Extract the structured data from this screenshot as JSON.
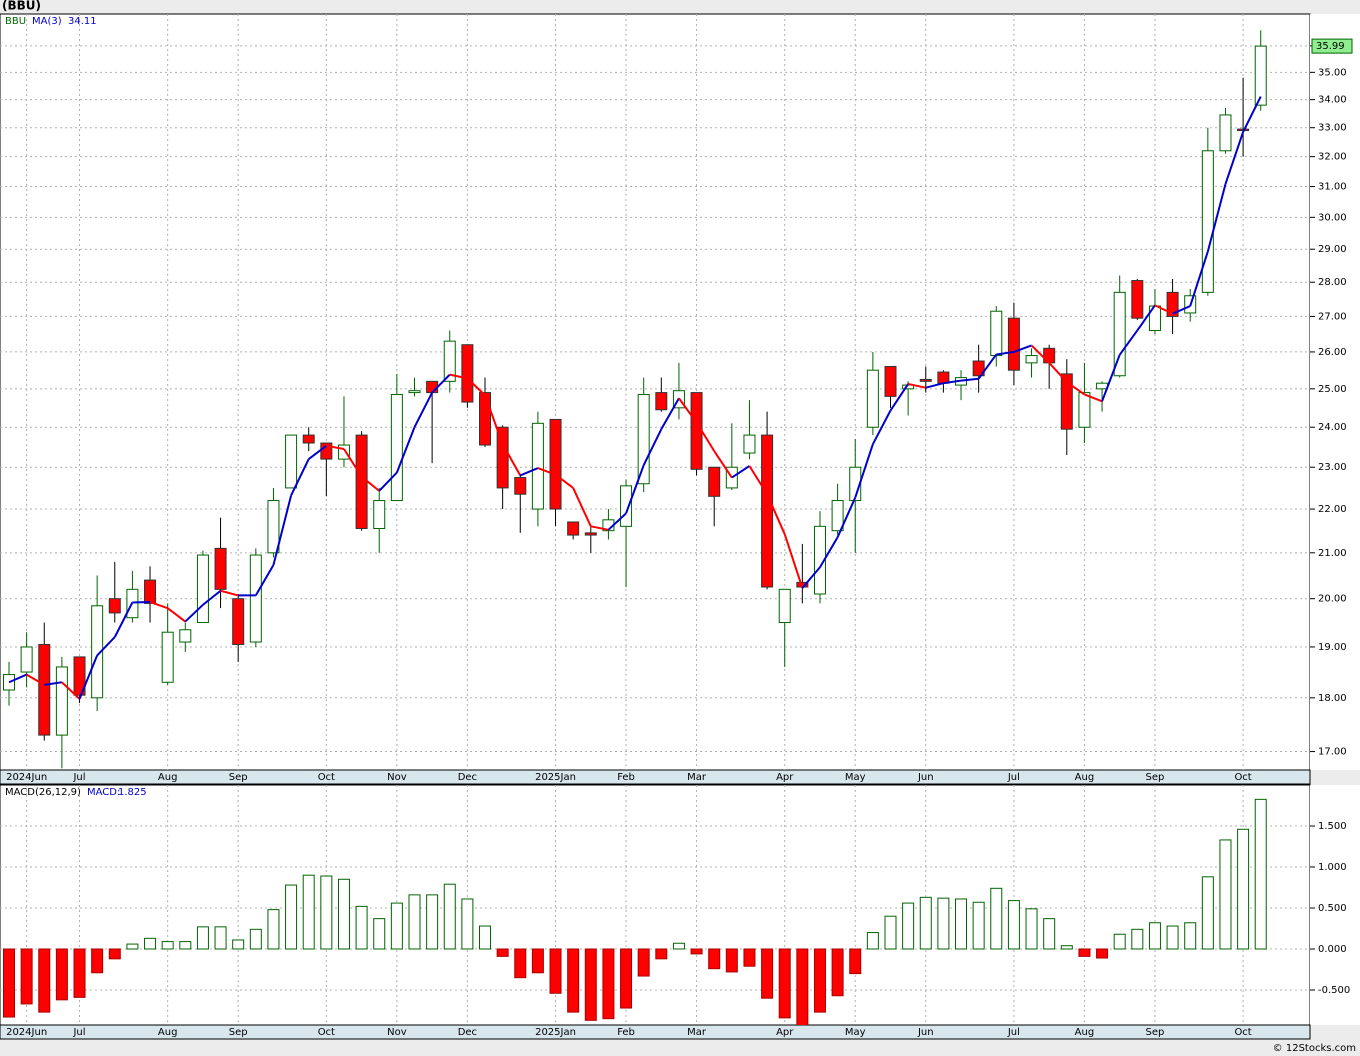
{
  "chart_data": [
    {
      "type": "candlestick",
      "title": "(BBU)",
      "symbol": "BBU",
      "categories": [
        null,
        "2024Jun",
        null,
        null,
        "Jul",
        null,
        null,
        null,
        null,
        "Aug",
        null,
        null,
        null,
        "Sep",
        null,
        null,
        null,
        null,
        "Oct",
        null,
        null,
        null,
        "Nov",
        null,
        null,
        null,
        "Dec",
        null,
        null,
        null,
        null,
        "2025Jan",
        null,
        null,
        null,
        "Feb",
        null,
        null,
        null,
        "Mar",
        null,
        null,
        null,
        null,
        "Apr",
        null,
        null,
        null,
        "May",
        null,
        null,
        null,
        "Jun",
        null,
        null,
        null,
        null,
        "Jul",
        null,
        null,
        null,
        "Aug",
        null,
        null,
        null,
        "Sep",
        null,
        null,
        null,
        null,
        "Oct",
        null
      ],
      "open": [
        18.15,
        18.5,
        19.05,
        17.3,
        18.8,
        18.0,
        20.0,
        19.6,
        20.4,
        18.3,
        19.1,
        19.5,
        21.1,
        20.0,
        19.1,
        21.0,
        22.5,
        23.8,
        23.6,
        23.2,
        23.8,
        21.55,
        22.2,
        24.9,
        25.2,
        25.2,
        26.2,
        24.9,
        24.0,
        22.75,
        22.0,
        24.2,
        21.7,
        21.45,
        21.5,
        21.6,
        22.6,
        24.9,
        24.5,
        24.9,
        23.0,
        22.5,
        23.35,
        23.8,
        19.5,
        20.35,
        20.1,
        21.5,
        22.2,
        24.0,
        25.6,
        25.0,
        25.25,
        25.45,
        25.1,
        25.75,
        25.9,
        26.95,
        25.7,
        26.1,
        25.4,
        24.0,
        25.0,
        25.35,
        28.05,
        26.6,
        27.7,
        27.1,
        27.7,
        32.2,
        32.95,
        33.8
      ],
      "high": [
        18.7,
        19.3,
        19.5,
        18.8,
        18.8,
        20.5,
        20.8,
        20.6,
        20.7,
        19.9,
        19.5,
        21.05,
        21.8,
        20.1,
        21.1,
        22.5,
        23.8,
        24.0,
        23.6,
        24.8,
        23.9,
        22.5,
        25.4,
        25.3,
        25.2,
        26.6,
        26.2,
        25.3,
        24.05,
        22.8,
        24.4,
        24.2,
        21.7,
        21.6,
        22.0,
        22.7,
        25.3,
        25.3,
        25.7,
        24.9,
        23.0,
        24.1,
        24.7,
        24.4,
        20.2,
        21.2,
        21.95,
        22.6,
        23.7,
        26.0,
        25.6,
        25.2,
        25.6,
        25.5,
        25.5,
        26.2,
        27.3,
        27.4,
        26.1,
        26.2,
        25.8,
        25.7,
        25.2,
        28.2,
        28.1,
        27.8,
        28.1,
        27.8,
        33.0,
        33.7,
        34.8,
        36.6
      ],
      "low": [
        17.85,
        18.2,
        17.2,
        16.7,
        17.9,
        17.75,
        19.5,
        19.5,
        19.5,
        18.25,
        18.9,
        19.5,
        19.8,
        18.7,
        19.0,
        20.9,
        22.5,
        23.4,
        22.3,
        23.0,
        21.5,
        21.0,
        22.2,
        24.8,
        23.1,
        24.9,
        24.5,
        23.5,
        22.0,
        21.45,
        21.6,
        21.6,
        21.3,
        21.0,
        21.3,
        20.25,
        22.4,
        24.4,
        24.2,
        22.8,
        21.6,
        22.45,
        23.2,
        20.2,
        18.6,
        19.9,
        19.9,
        21.4,
        21.0,
        23.8,
        24.5,
        24.3,
        24.9,
        24.9,
        24.7,
        24.9,
        25.6,
        25.1,
        25.3,
        25.0,
        23.3,
        23.6,
        24.4,
        25.3,
        26.9,
        26.5,
        26.5,
        26.85,
        27.6,
        32.1,
        32.0,
        33.6
      ],
      "close": [
        18.45,
        19.0,
        17.3,
        18.6,
        18.05,
        19.85,
        19.7,
        20.2,
        19.9,
        19.3,
        19.35,
        20.95,
        20.2,
        19.05,
        20.95,
        22.2,
        23.8,
        23.6,
        23.2,
        23.55,
        21.55,
        22.2,
        24.85,
        24.95,
        24.9,
        26.3,
        24.65,
        23.55,
        22.5,
        22.35,
        24.1,
        22.0,
        21.4,
        21.4,
        21.75,
        22.55,
        24.85,
        24.45,
        24.95,
        22.95,
        22.3,
        23.0,
        23.8,
        20.25,
        20.2,
        20.25,
        21.6,
        22.2,
        23.0,
        25.5,
        24.8,
        25.1,
        25.2,
        25.15,
        25.3,
        25.35,
        27.15,
        25.5,
        25.9,
        25.7,
        23.95,
        24.9,
        25.15,
        27.7,
        26.95,
        27.3,
        27.0,
        27.6,
        32.2,
        33.45,
        32.9,
        35.99
      ],
      "up_color": "#006400",
      "down_color": "#ff0000",
      "ma": {
        "name": "MA(3)",
        "rising_color": "#0000cc",
        "falling_color": "#ff0000",
        "values": [
          18.3,
          18.45,
          18.25,
          18.3,
          17.98,
          18.83,
          19.2,
          19.92,
          19.93,
          19.8,
          19.52,
          19.87,
          20.17,
          20.07,
          20.07,
          20.73,
          22.32,
          23.2,
          23.53,
          23.45,
          22.77,
          22.43,
          22.87,
          24.0,
          24.9,
          25.38,
          25.28,
          24.83,
          23.57,
          22.8,
          22.98,
          22.82,
          22.5,
          21.6,
          21.52,
          21.9,
          23.05,
          23.95,
          24.75,
          24.12,
          23.4,
          22.75,
          23.03,
          22.35,
          21.42,
          20.23,
          20.68,
          21.35,
          22.27,
          23.57,
          24.43,
          25.13,
          25.03,
          25.15,
          25.22,
          25.27,
          25.93,
          26.0,
          26.18,
          25.7,
          25.18,
          24.85,
          24.67,
          25.92,
          26.6,
          27.32,
          27.08,
          27.3,
          28.93,
          31.08,
          32.85,
          34.11
        ]
      },
      "log_scale": true,
      "grid": true,
      "ylim": [
        16.67,
        37.24
      ],
      "yticks": [
        {
          "value": 17,
          "label": "17.00"
        },
        {
          "value": 18,
          "label": "18.00"
        },
        {
          "value": 19,
          "label": "19.00"
        },
        {
          "value": 20,
          "label": "20.00"
        },
        {
          "value": 21,
          "label": "21.00"
        },
        {
          "value": 22,
          "label": "22.00"
        },
        {
          "value": 23,
          "label": "23.00"
        },
        {
          "value": 24,
          "label": "24.00"
        },
        {
          "value": 25,
          "label": "25.00"
        },
        {
          "value": 26,
          "label": "26.00"
        },
        {
          "value": 27,
          "label": "27.00"
        },
        {
          "value": 28,
          "label": "28.00"
        },
        {
          "value": 29,
          "label": "29.00"
        },
        {
          "value": 30,
          "label": "30.00"
        },
        {
          "value": 31,
          "label": "31.00"
        },
        {
          "value": 32,
          "label": "32.00"
        },
        {
          "value": 33,
          "label": "33.00"
        },
        {
          "value": 34,
          "label": "34.00"
        },
        {
          "value": 35,
          "label": "35.00"
        },
        {
          "value": 36,
          "label": "36.00"
        }
      ]
    },
    {
      "type": "bar",
      "name": "MACD(26,12,9)",
      "value_caption": "MACD:",
      "values": [
        -0.83,
        -0.67,
        -0.77,
        -0.62,
        -0.59,
        -0.29,
        -0.12,
        0.06,
        0.13,
        0.09,
        0.09,
        0.27,
        0.27,
        0.11,
        0.24,
        0.48,
        0.78,
        0.9,
        0.89,
        0.85,
        0.52,
        0.37,
        0.56,
        0.66,
        0.66,
        0.79,
        0.61,
        0.28,
        -0.09,
        -0.35,
        -0.29,
        -0.54,
        -0.77,
        -0.87,
        -0.85,
        -0.72,
        -0.33,
        -0.12,
        0.07,
        -0.06,
        -0.24,
        -0.28,
        -0.21,
        -0.6,
        -0.84,
        -0.95,
        -0.77,
        -0.57,
        -0.3,
        0.2,
        0.4,
        0.56,
        0.63,
        0.62,
        0.61,
        0.57,
        0.74,
        0.59,
        0.49,
        0.37,
        0.04,
        -0.09,
        -0.11,
        0.18,
        0.24,
        0.32,
        0.28,
        0.32,
        0.88,
        1.33,
        1.46,
        1.825
      ],
      "positive_color": "#006400",
      "negative_color": "#ff0000",
      "ylim": [
        -0.927,
        2.0
      ],
      "grid": true,
      "yticks": [
        {
          "value": -0.5,
          "label": "-0.500"
        },
        {
          "value": 0,
          "label": "0.000"
        },
        {
          "value": 0.5,
          "label": "0.500"
        },
        {
          "value": 1,
          "label": "1.000"
        },
        {
          "value": 1.5,
          "label": "1.500"
        }
      ]
    }
  ],
  "footer": "© 12Stocks.com"
}
